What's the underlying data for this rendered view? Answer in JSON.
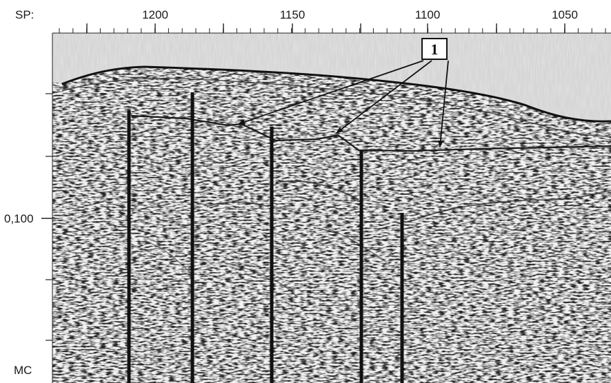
{
  "x_axis": {
    "name": "SP:",
    "ticks": [
      "1200",
      "1150",
      "1100",
      "1050"
    ]
  },
  "y_axis": {
    "ticks": [
      "0,100"
    ],
    "unit": "MC"
  },
  "callout": {
    "label": "1"
  },
  "colors": {
    "water": "#d9d9d9",
    "background": "#ffffff",
    "ink": "#111111"
  }
}
